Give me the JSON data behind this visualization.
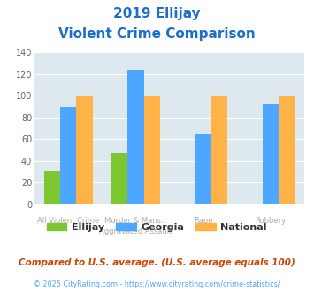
{
  "title_line1": "2019 Ellijay",
  "title_line2": "Violent Crime Comparison",
  "top_labels": [
    "",
    "Murder & Mans...",
    "Rape",
    ""
  ],
  "bottom_labels": [
    "All Violent Crime",
    "Aggravated Assault",
    "",
    "Robbery"
  ],
  "ellijay": [
    31,
    47,
    0,
    0
  ],
  "georgia": [
    90,
    124,
    65,
    93
  ],
  "national": [
    100,
    100,
    100,
    100
  ],
  "bar_color_ellijay": "#7dc832",
  "bar_color_georgia": "#4da6ff",
  "bar_color_national": "#ffb347",
  "ylim": [
    0,
    140
  ],
  "yticks": [
    0,
    20,
    40,
    60,
    80,
    100,
    120,
    140
  ],
  "bg_color": "#dde9ee",
  "title_color": "#1a6fcc",
  "xlabel_color": "#aaaaaa",
  "footer_note": "Compared to U.S. average. (U.S. average equals 100)",
  "copyright": "© 2025 CityRating.com - https://www.cityrating.com/crime-statistics/",
  "footer_note_color": "#cc4400",
  "copyright_color": "#4da6ff"
}
